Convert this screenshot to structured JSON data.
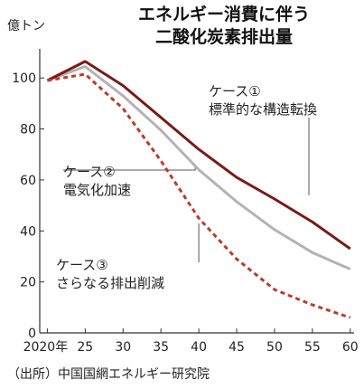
{
  "chart_data": {
    "type": "line",
    "title_line1": "エネルギー消費に伴う",
    "title_line2": "二酸化炭素排出量",
    "unit": "億トン",
    "x": [
      2020,
      2025,
      2030,
      2035,
      2040,
      2045,
      2050,
      2055,
      2060
    ],
    "x_tick_labels": [
      "2020年",
      "25",
      "30",
      "35",
      "40",
      "45",
      "50",
      "55",
      "60"
    ],
    "y_ticks": [
      0,
      20,
      40,
      60,
      80,
      100
    ],
    "ylim": [
      0,
      110
    ],
    "xlim": [
      2019,
      2060.5
    ],
    "grid": false,
    "series": [
      {
        "name_line1": "ケース①",
        "name_line2": "標準的な構造転換",
        "color": "#7a1a14",
        "style": "solid",
        "values": [
          99,
          106.5,
          97,
          84.5,
          72,
          61,
          52.5,
          43.5,
          33
        ]
      },
      {
        "name_line1": "ケース②",
        "name_line2": "電気化加速",
        "color": "#b3b3b3",
        "style": "solid",
        "values": [
          99,
          104.5,
          93,
          79.5,
          64,
          51.5,
          40.5,
          31.5,
          25
        ]
      },
      {
        "name_line1": "ケース③",
        "name_line2": "さらなる排出削減",
        "color": "#c0392b",
        "style": "dashed",
        "values": [
          99,
          101.5,
          88,
          67.5,
          45,
          29,
          17,
          11,
          6
        ]
      }
    ],
    "source": "（出所）中国国網エネルギー研究院"
  }
}
